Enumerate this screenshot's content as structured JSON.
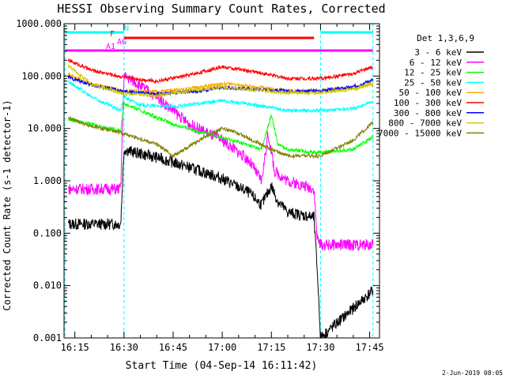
{
  "chart_data": {
    "type": "line",
    "title": "HESSI Observing Summary Count Rates, Corrected",
    "xlabel": "Start Time (04-Sep-14 16:11:42)",
    "ylabel": "Corrected Count Rate (s-1 detector-1)",
    "y_scale": "log",
    "ylim": [
      0.001,
      1000
    ],
    "xlim_minutes_of_day": [
      971.7,
      1068.0
    ],
    "x_tick_labels": [
      "16:15",
      "16:30",
      "16:45",
      "17:00",
      "17:15",
      "17:30",
      "17:45"
    ],
    "y_tick_labels": [
      "1000.000",
      "100.000",
      "10.000",
      "1.000",
      "0.100",
      "0.010",
      "0.001"
    ],
    "legend": {
      "title": "Det 1,3,6,9",
      "placement": "right, outside plot",
      "entries": [
        "3 - 6 keV",
        "6 - 12 keV",
        "12 - 25 keV",
        "25 - 50 keV",
        "50 - 100 keV",
        "100 - 300 keV",
        "300 - 800 keV",
        "800 - 7000 keV",
        "7000 - 15000 keV"
      ]
    },
    "series": [
      {
        "name": "3 - 6 keV",
        "color": "#000000",
        "x": [
          "16:13",
          "16:29",
          "16:30",
          "16:33",
          "16:40",
          "16:50",
          "17:00",
          "17:08",
          "17:12",
          "17:15",
          "17:17",
          "17:20",
          "17:28",
          "17:29",
          "17:30",
          "17:46"
        ],
        "y": [
          0.15,
          0.15,
          4.0,
          3.5,
          2.8,
          1.8,
          1.1,
          0.6,
          0.35,
          0.8,
          0.4,
          0.25,
          0.2,
          0.02,
          0.0,
          0.008
        ]
      },
      {
        "name": "6 - 12 keV",
        "color": "#ff00ff",
        "x": [
          "16:13",
          "16:29",
          "16:30",
          "16:33",
          "16:40",
          "16:50",
          "17:00",
          "17:08",
          "17:12",
          "17:14",
          "17:16",
          "17:20",
          "17:28",
          "17:29",
          "17:30",
          "17:46"
        ],
        "y": [
          0.7,
          0.7,
          100,
          80,
          40,
          12,
          6,
          2.5,
          1.0,
          8.0,
          1.5,
          1.0,
          0.7,
          0.08,
          0.06,
          0.06
        ]
      },
      {
        "name": "12 - 25 keV",
        "color": "#00ff00",
        "x": [
          "16:13",
          "16:20",
          "16:29",
          "16:30",
          "16:35",
          "16:45",
          "16:55",
          "17:05",
          "17:12",
          "17:15",
          "17:17",
          "17:20",
          "17:28",
          "17:30",
          "17:40",
          "17:46"
        ],
        "y": [
          15,
          12,
          9,
          30,
          22,
          12,
          8,
          5.5,
          4,
          18,
          5,
          4,
          3.5,
          3.5,
          4,
          7
        ]
      },
      {
        "name": "25 - 50 keV",
        "color": "#00ffff",
        "x": [
          "16:13",
          "16:20",
          "16:29",
          "16:30",
          "16:35",
          "16:45",
          "17:00",
          "17:10",
          "17:20",
          "17:30",
          "17:40",
          "17:46"
        ],
        "y": [
          80,
          40,
          22,
          40,
          28,
          26,
          34,
          28,
          22,
          22,
          24,
          32
        ]
      },
      {
        "name": "50 - 100 keV",
        "color": "#ffaa00",
        "x": [
          "16:13",
          "16:20",
          "16:30",
          "16:40",
          "16:50",
          "17:00",
          "17:10",
          "17:20",
          "17:30",
          "17:40",
          "17:46"
        ],
        "y": [
          110,
          70,
          52,
          50,
          58,
          72,
          62,
          52,
          52,
          60,
          68
        ]
      },
      {
        "name": "100 - 300 keV",
        "color": "#ff0000",
        "x": [
          "16:13",
          "16:20",
          "16:30",
          "16:40",
          "16:50",
          "17:00",
          "17:10",
          "17:20",
          "17:30",
          "17:40",
          "17:46"
        ],
        "y": [
          200,
          130,
          95,
          80,
          105,
          150,
          120,
          90,
          90,
          110,
          150
        ]
      },
      {
        "name": "300 - 800 keV",
        "color": "#0000ff",
        "x": [
          "16:13",
          "16:20",
          "16:30",
          "16:40",
          "16:50",
          "17:00",
          "17:10",
          "17:20",
          "17:30",
          "17:40",
          "17:46"
        ],
        "y": [
          95,
          68,
          50,
          46,
          50,
          60,
          56,
          52,
          52,
          62,
          85
        ]
      },
      {
        "name": "800 - 7000 keV",
        "color": "#cccc00",
        "x": [
          "16:13",
          "16:20",
          "16:30",
          "16:40",
          "16:50",
          "17:00",
          "17:10",
          "17:20",
          "17:30",
          "17:40",
          "17:46"
        ],
        "y": [
          160,
          70,
          46,
          42,
          52,
          62,
          54,
          48,
          48,
          56,
          75
        ]
      },
      {
        "name": "7000 - 15000 keV",
        "color": "#808000",
        "x": [
          "16:13",
          "16:20",
          "16:30",
          "16:40",
          "16:45",
          "16:55",
          "17:00",
          "17:05",
          "17:15",
          "17:20",
          "17:30",
          "17:40",
          "17:46"
        ],
        "y": [
          16,
          11,
          8,
          5,
          3,
          7,
          10,
          8,
          4,
          3,
          3,
          6,
          13
        ]
      }
    ],
    "flag_bars": [
      {
        "label": "N",
        "color": "#00ffff",
        "segments": [
          [
            "16:12",
            "16:30"
          ],
          [
            "17:30",
            "17:46"
          ]
        ]
      },
      {
        "label": "F",
        "color": "#ff0000",
        "segments": [
          [
            "16:30",
            "17:28"
          ]
        ]
      },
      {
        "label": "AG",
        "color": "#ff00ff",
        "segments": []
      },
      {
        "label": "A1",
        "color": "#ff00ff",
        "segments": [
          [
            "16:12",
            "17:46"
          ]
        ]
      }
    ],
    "vertical_markers": [
      "16:12",
      "16:30",
      "17:30",
      "17:46"
    ]
  },
  "footer": {
    "date_stamp": "2-Jun-2019 08:05"
  }
}
